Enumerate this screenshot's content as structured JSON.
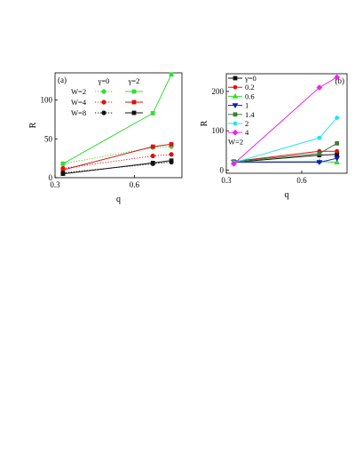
{
  "chart_data": [
    {
      "type": "line",
      "panel_label": "(a)",
      "xlabel": "q",
      "ylabel": "R",
      "xlim": [
        0.3,
        0.78
      ],
      "ylim": [
        0,
        135
      ],
      "xticks": [
        {
          "v": 0.3,
          "t": "0.3"
        },
        {
          "v": 0.6,
          "t": "0.6"
        }
      ],
      "yticks": [
        {
          "v": 0,
          "t": "0"
        },
        {
          "v": 50,
          "t": "50"
        },
        {
          "v": 100,
          "t": "100"
        }
      ],
      "legend": {
        "position": "top-center",
        "col_headers": [
          "γ=0",
          "γ=2"
        ],
        "rows": [
          "W=2",
          "W=4",
          "W=8"
        ]
      },
      "series": [
        {
          "group": "W=2",
          "gamma": "γ=0",
          "color": "#33dd33",
          "dash": "dotted",
          "x": [
            0.33,
            0.67,
            0.74
          ],
          "y": [
            18,
            39,
            40
          ]
        },
        {
          "group": "W=2",
          "gamma": "γ=2",
          "color": "#33dd33",
          "dash": "solid",
          "x": [
            0.33,
            0.67,
            0.74
          ],
          "y": [
            18,
            83,
            133
          ]
        },
        {
          "group": "W=4",
          "gamma": "γ=0",
          "color": "#dd1111",
          "dash": "dotted",
          "x": [
            0.33,
            0.67,
            0.74
          ],
          "y": [
            12,
            28,
            30
          ]
        },
        {
          "group": "W=4",
          "gamma": "γ=2",
          "color": "#dd1111",
          "dash": "solid",
          "x": [
            0.33,
            0.67,
            0.74
          ],
          "y": [
            10,
            40,
            43
          ]
        },
        {
          "group": "W=8",
          "gamma": "γ=0",
          "color": "#111111",
          "dash": "dotted",
          "x": [
            0.33,
            0.67,
            0.74
          ],
          "y": [
            6,
            18,
            20
          ]
        },
        {
          "group": "W=8",
          "gamma": "γ=2",
          "color": "#111111",
          "dash": "solid",
          "x": [
            0.33,
            0.67,
            0.74
          ],
          "y": [
            5,
            19,
            22
          ]
        }
      ]
    },
    {
      "type": "line",
      "panel_label": "(b)",
      "xlabel": "q",
      "ylabel": "R",
      "xlim": [
        0.3,
        0.78
      ],
      "ylim": [
        -8,
        245
      ],
      "xticks": [
        {
          "v": 0.3,
          "t": "0.3"
        },
        {
          "v": 0.6,
          "t": "0.6"
        }
      ],
      "yticks": [
        {
          "v": 0,
          "t": "0"
        },
        {
          "v": 100,
          "t": "100"
        },
        {
          "v": 200,
          "t": "200"
        }
      ],
      "legend": {
        "position": "top-left",
        "note": "W=2"
      },
      "series": [
        {
          "name": "γ=0",
          "color": "#111111",
          "marker": "square",
          "x": [
            0.33,
            0.67,
            0.74
          ],
          "y": [
            20,
            38,
            40
          ]
        },
        {
          "name": "0.2",
          "color": "#dd1111",
          "marker": "circle",
          "x": [
            0.33,
            0.67,
            0.74
          ],
          "y": [
            22,
            48,
            48
          ]
        },
        {
          "name": "0.6",
          "color": "#33dd33",
          "marker": "triangle-up",
          "x": [
            0.33,
            0.67,
            0.74
          ],
          "y": [
            21,
            22,
            20
          ]
        },
        {
          "name": "1",
          "color": "#1515c8",
          "marker": "triangle-down",
          "x": [
            0.33,
            0.67,
            0.74
          ],
          "y": [
            20,
            20,
            30
          ]
        },
        {
          "name": "1.4",
          "color": "#3a7f3a",
          "marker": "square",
          "x": [
            0.33,
            0.67,
            0.74
          ],
          "y": [
            22,
            42,
            68
          ]
        },
        {
          "name": "2",
          "color": "#22e6ee",
          "marker": "circle",
          "x": [
            0.33,
            0.67,
            0.74
          ],
          "y": [
            19,
            82,
            133
          ]
        },
        {
          "name": "4",
          "color": "#ee22ee",
          "marker": "diamond",
          "x": [
            0.33,
            0.67,
            0.74
          ],
          "y": [
            16,
            210,
            236
          ]
        }
      ]
    }
  ]
}
